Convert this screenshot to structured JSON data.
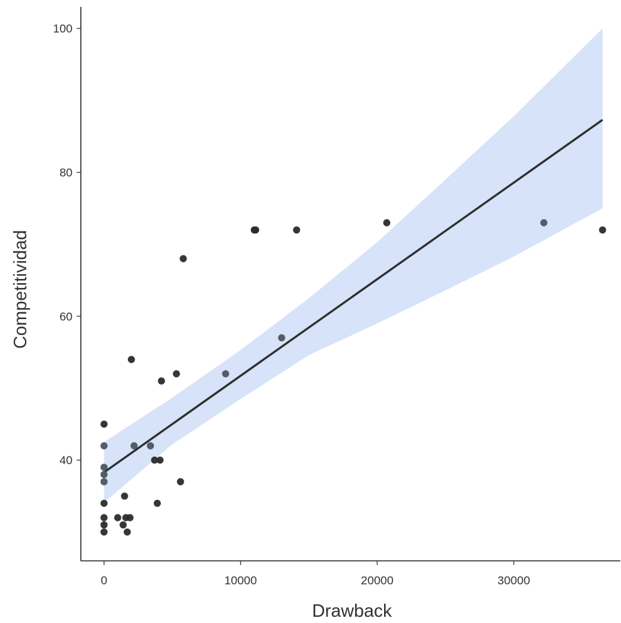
{
  "chart_data": {
    "type": "scatter",
    "title": "",
    "xlabel": "Drawback",
    "ylabel": "Competitividad",
    "xlim": [
      -1700,
      37800
    ],
    "ylim": [
      26,
      103
    ],
    "x_ticks": [
      {
        "value": 0,
        "label": "0"
      },
      {
        "value": 10000,
        "label": "10000"
      },
      {
        "value": 20000,
        "label": "20000"
      },
      {
        "value": 30000,
        "label": "30000"
      }
    ],
    "y_ticks": [
      {
        "value": 40,
        "label": "40"
      },
      {
        "value": 60,
        "label": "60"
      },
      {
        "value": 80,
        "label": "80"
      },
      {
        "value": 100,
        "label": "100"
      }
    ],
    "grid": false,
    "legend": "none",
    "colors": {
      "point": "#2b2b2b",
      "point_in_band": "#4a5560",
      "fit_line": "#2e2e2e",
      "confidence_band": "#d7e3f8",
      "axis": "#333333"
    },
    "fit": {
      "type": "linear",
      "x": [
        0,
        36500
      ],
      "y": [
        38.3,
        87.3
      ]
    },
    "confidence_band": {
      "x": [
        0,
        5000,
        10000,
        15000,
        20000,
        25000,
        30000,
        36500
      ],
      "lower": [
        34.1,
        42.2,
        48.5,
        54.6,
        59.0,
        63.6,
        68.3,
        75.0
      ],
      "upper": [
        42.5,
        48.7,
        55.3,
        62.5,
        70.3,
        79.0,
        87.8,
        100.0
      ]
    },
    "points": [
      {
        "x": 0,
        "y": 45
      },
      {
        "x": 0,
        "y": 42
      },
      {
        "x": 0,
        "y": 39
      },
      {
        "x": 0,
        "y": 38
      },
      {
        "x": 0,
        "y": 37
      },
      {
        "x": 0,
        "y": 34
      },
      {
        "x": 0,
        "y": 32
      },
      {
        "x": 0,
        "y": 31
      },
      {
        "x": 0,
        "y": 30
      },
      {
        "x": 1000,
        "y": 32
      },
      {
        "x": 1400,
        "y": 31
      },
      {
        "x": 1500,
        "y": 35
      },
      {
        "x": 1600,
        "y": 32
      },
      {
        "x": 1700,
        "y": 30
      },
      {
        "x": 1900,
        "y": 32
      },
      {
        "x": 2000,
        "y": 54
      },
      {
        "x": 2200,
        "y": 42
      },
      {
        "x": 3400,
        "y": 42
      },
      {
        "x": 3700,
        "y": 40
      },
      {
        "x": 3900,
        "y": 34
      },
      {
        "x": 4100,
        "y": 40
      },
      {
        "x": 4200,
        "y": 51
      },
      {
        "x": 5300,
        "y": 52
      },
      {
        "x": 5600,
        "y": 37
      },
      {
        "x": 5800,
        "y": 68
      },
      {
        "x": 8900,
        "y": 52
      },
      {
        "x": 11000,
        "y": 72
      },
      {
        "x": 11100,
        "y": 72
      },
      {
        "x": 13000,
        "y": 57
      },
      {
        "x": 14100,
        "y": 72
      },
      {
        "x": 20700,
        "y": 73
      },
      {
        "x": 32200,
        "y": 73
      },
      {
        "x": 36500,
        "y": 72
      }
    ]
  }
}
